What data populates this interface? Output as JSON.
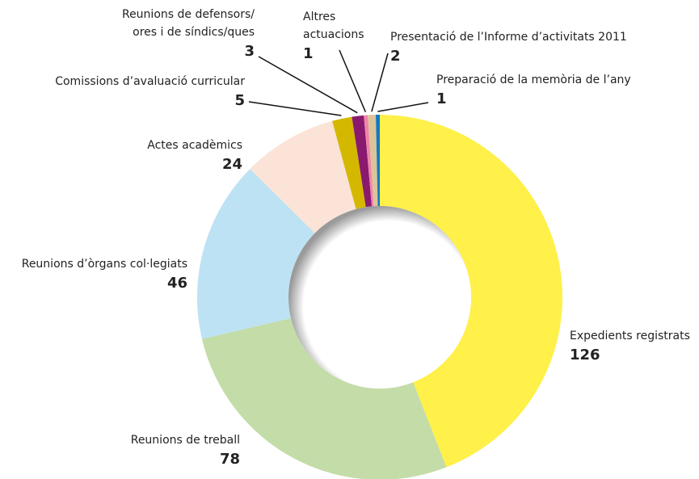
{
  "chart_data": {
    "type": "donut",
    "categories": [
      [
        "Expedients registrats"
      ],
      [
        "Reunions de treball"
      ],
      [
        "Reunions d’òrgans col·legiats"
      ],
      [
        "Actes acadèmics"
      ],
      [
        "Comissions d’avaluació curricular"
      ],
      [
        "Reunions de defensors/",
        "ores i de síndics/ques"
      ],
      [
        "Altres",
        "actuacions"
      ],
      [
        "Presentació de l’Informe d’activitats 2011"
      ],
      [
        "Preparació de la memòria de l’any"
      ]
    ],
    "values": [
      126,
      78,
      46,
      24,
      5,
      3,
      1,
      2,
      1
    ],
    "colors": [
      "#fff04a",
      "#c3dca8",
      "#bde2f3",
      "#fbe3d7",
      "#d4b800",
      "#8a1a6e",
      "#ef86a8",
      "#dcc49a",
      "#1479c0"
    ]
  }
}
